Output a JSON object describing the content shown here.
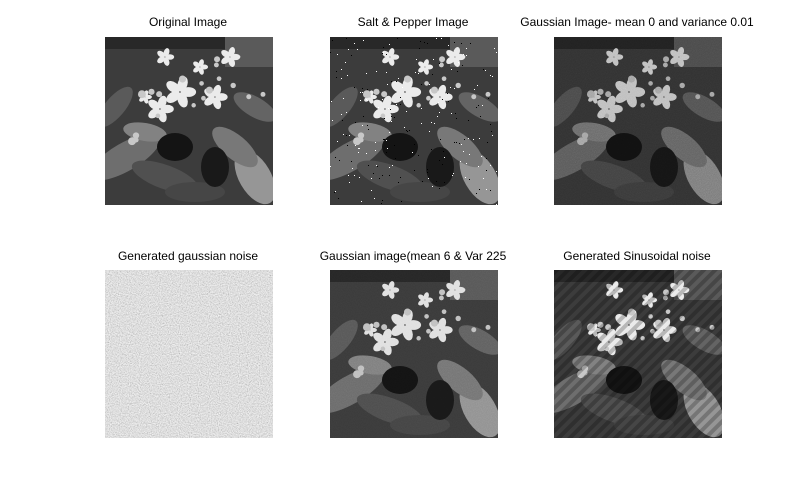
{
  "figure": {
    "panels": [
      {
        "title": "Original Image",
        "kind": "original"
      },
      {
        "title": "Salt & Pepper Image",
        "kind": "saltpepper"
      },
      {
        "title": "Gaussian Image- mean 0 and variance 0.01",
        "kind": "gaussian"
      },
      {
        "title": "Generated gaussian noise",
        "kind": "noise"
      },
      {
        "title": "Gaussian image(mean 6 & Var 225",
        "kind": "gaussian2"
      },
      {
        "title": "Generated Sinusoidal noise",
        "kind": "sinusoidal"
      }
    ]
  }
}
